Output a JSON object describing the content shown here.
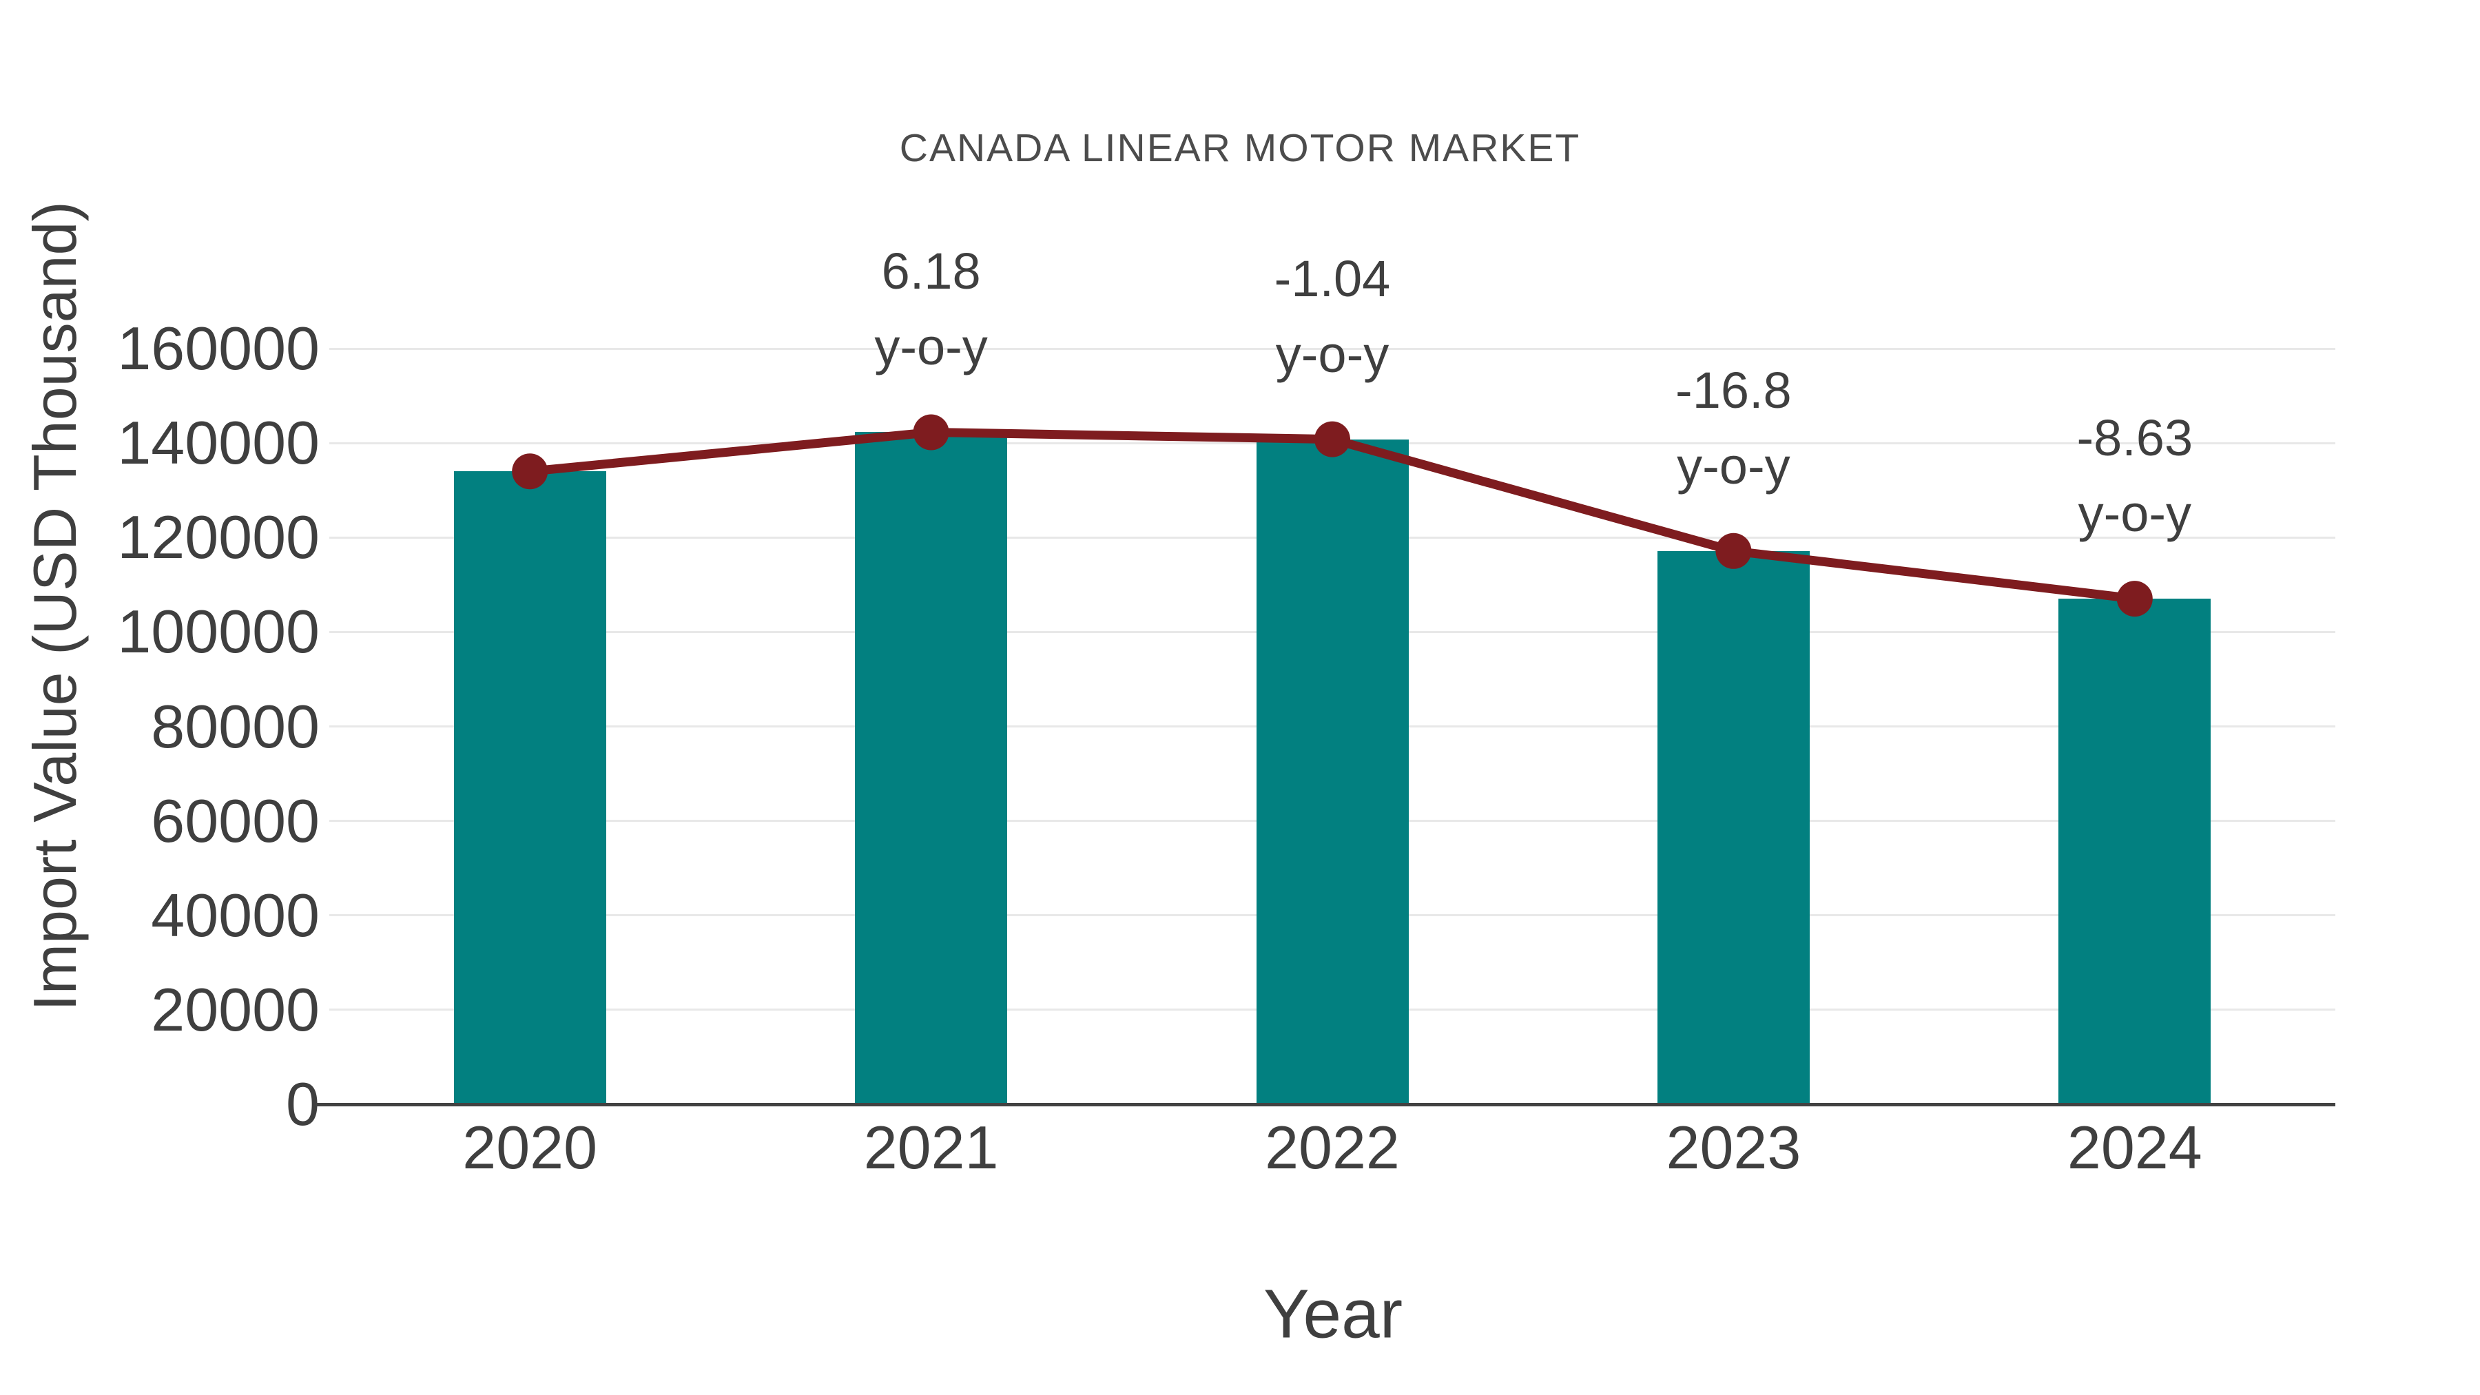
{
  "chart": {
    "title": "CANADA LINEAR MOTOR MARKET",
    "x_title": "Year",
    "y_title": "Import Value (USD Thousand)"
  },
  "chart_data": {
    "type": "bar",
    "title": "CANADA LINEAR MOTOR MARKET",
    "xlabel": "Year",
    "ylabel": "Import Value (USD Thousand)",
    "categories": [
      "2020",
      "2021",
      "2022",
      "2023",
      "2024"
    ],
    "series": [
      {
        "name": "import-value-bars",
        "type": "bar",
        "values": [
          134000,
          142281,
          140801,
          117147,
          107037
        ]
      },
      {
        "name": "import-value-line",
        "type": "line",
        "values": [
          134000,
          142281,
          140801,
          117147,
          107037
        ]
      }
    ],
    "annotations": [
      {
        "category": "2021",
        "line1": "6.18",
        "line2": "y-o-y"
      },
      {
        "category": "2022",
        "line1": "-1.04",
        "line2": "y-o-y"
      },
      {
        "category": "2023",
        "line1": "-16.8",
        "line2": "y-o-y"
      },
      {
        "category": "2024",
        "line1": "-8.63",
        "line2": "y-o-y"
      }
    ],
    "y_ticks": [
      "0",
      "20000",
      "40000",
      "60000",
      "80000",
      "100000",
      "120000",
      "140000",
      "160000"
    ],
    "ylim": [
      0,
      160000
    ],
    "grid": true,
    "legend_position": "none"
  },
  "colors": {
    "bar": "#028080",
    "line": "#7e1c1f",
    "marker": "#7e1c1f",
    "grid": "#e8e8e8",
    "axis_line": "#424242",
    "text": "#3f3f3f",
    "title_text": "#4c4c4c",
    "background": "#ffffff"
  }
}
